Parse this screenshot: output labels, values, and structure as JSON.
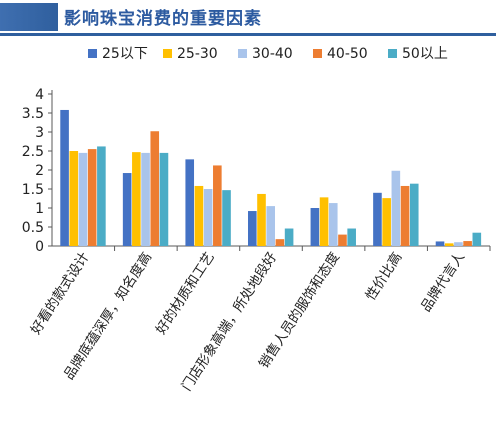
{
  "chart_data": {
    "type": "bar",
    "title": "影响珠宝消费的重要因素",
    "categories": [
      "好看的款式设计",
      "品牌底蕴深厚，知名度高",
      "好的材质和工艺",
      "门店形象高端，所处地段好",
      "销售人员的服饰和态度",
      "性价比高",
      "品牌代言人"
    ],
    "series": [
      {
        "name": "25以下",
        "color": "#4472c4",
        "values": [
          3.58,
          1.92,
          2.28,
          0.92,
          1.0,
          1.4,
          0.12
        ]
      },
      {
        "name": "25-30",
        "color": "#ffc000",
        "values": [
          2.5,
          2.47,
          1.58,
          1.37,
          1.28,
          1.26,
          0.07
        ]
      },
      {
        "name": "30-40",
        "color": "#a9c4eb",
        "values": [
          2.45,
          2.45,
          1.5,
          1.05,
          1.13,
          1.98,
          0.1
        ]
      },
      {
        "name": "40-50",
        "color": "#ed7d31",
        "values": [
          2.55,
          3.02,
          2.12,
          0.18,
          0.3,
          1.58,
          0.13
        ]
      },
      {
        "name": "50以上",
        "color": "#4bacc6",
        "values": [
          2.62,
          2.45,
          1.47,
          0.46,
          0.46,
          1.64,
          0.35
        ]
      }
    ],
    "y_ticks": [
      "0",
      "0.5",
      "1",
      "1.5",
      "2",
      "2.5",
      "3",
      "3.5",
      "4"
    ],
    "ylim": [
      0,
      4
    ],
    "legend_position": "top",
    "grid": false
  }
}
